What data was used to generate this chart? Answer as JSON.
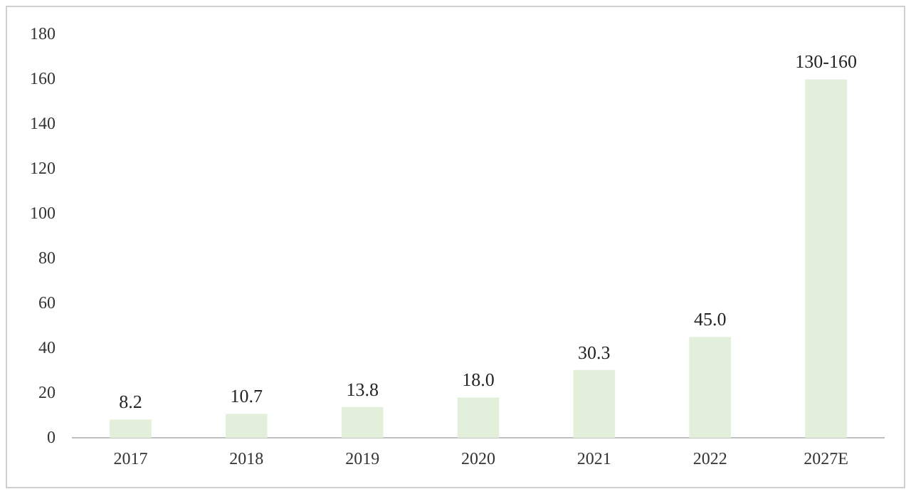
{
  "chart_data": {
    "type": "bar",
    "categories": [
      "2017",
      "2018",
      "2019",
      "2020",
      "2021",
      "2022",
      "2027E"
    ],
    "values": [
      8.2,
      10.7,
      13.8,
      18.0,
      30.3,
      45.0,
      160
    ],
    "value_labels": [
      "8.2",
      "10.7",
      "13.8",
      "18.0",
      "30.3",
      "45.0",
      "130-160"
    ],
    "color": "#e2efda",
    "ylim": [
      0,
      180
    ],
    "yticks": [
      0,
      20,
      40,
      60,
      80,
      100,
      120,
      140,
      160,
      180
    ]
  }
}
